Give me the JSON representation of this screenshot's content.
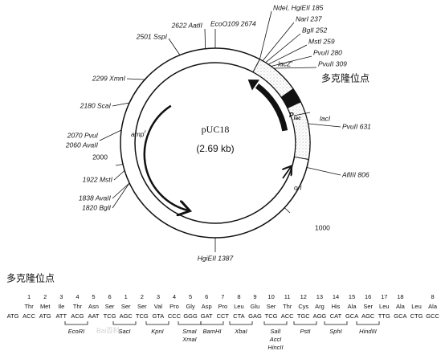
{
  "map": {
    "name": "pUC18",
    "size": "(2.69 kb)",
    "sites": [
      "NdeI, HgiEII 185",
      "NarI 237",
      "BglI 252",
      "MstI 259",
      "PvuII 280",
      "PvuII 309",
      "PvuII 631",
      "AflIII 806",
      "1000",
      "HgiEII 1387",
      "1820 BglI",
      "1838 AvaII",
      "1922 MstI",
      "2000",
      "2060 AvaII",
      "2070 PvuI",
      "2180 ScaI",
      "2299 XmnI",
      "2501 SspI",
      "2622 AatII",
      "EcoO109 2674"
    ],
    "genes": {
      "lacZ": "lacZ'",
      "lacI": "lacI",
      "plac": "P",
      "plac_sub": "lac",
      "amp": "amp",
      "amp_sup": "r",
      "ori": "ori"
    },
    "mcs_label": "多克隆位点"
  },
  "mcs": {
    "title": "多克隆位点",
    "columns": [
      {
        "number": null,
        "aa": null,
        "codon": "ATG"
      },
      {
        "number": 1,
        "aa": "Thr",
        "codon": "ACC"
      },
      {
        "number": 2,
        "aa": "Met",
        "codon": "ATG"
      },
      {
        "number": 3,
        "aa": "Ile",
        "codon": "ATT"
      },
      {
        "number": 4,
        "aa": "Thr",
        "codon": "ACG"
      },
      {
        "number": 5,
        "aa": "Asn",
        "codon": "AAT"
      },
      {
        "number": 6,
        "aa": "Ser",
        "codon": "TCG"
      },
      {
        "number": 1,
        "aa": "Ser",
        "codon": "AGC"
      },
      {
        "number": 2,
        "aa": "Ser",
        "codon": "TCG"
      },
      {
        "number": 3,
        "aa": "Val",
        "codon": "GTA"
      },
      {
        "number": 4,
        "aa": "Pro",
        "codon": "CCC"
      },
      {
        "number": 5,
        "aa": "Gly",
        "codon": "GGG"
      },
      {
        "number": 6,
        "aa": "Asp",
        "codon": "GAT"
      },
      {
        "number": 7,
        "aa": "Pro",
        "codon": "CCT"
      },
      {
        "number": 8,
        "aa": "Leu",
        "codon": "CTA"
      },
      {
        "number": 9,
        "aa": "Glu",
        "codon": "GAG"
      },
      {
        "number": 10,
        "aa": "Ser",
        "codon": "TCG"
      },
      {
        "number": 11,
        "aa": "Thr",
        "codon": "ACC"
      },
      {
        "number": 12,
        "aa": "Cys",
        "codon": "TGC"
      },
      {
        "number": 13,
        "aa": "Arg",
        "codon": "AGG"
      },
      {
        "number": 14,
        "aa": "His",
        "codon": "CAT"
      },
      {
        "number": 15,
        "aa": "Ala",
        "codon": "GCA"
      },
      {
        "number": 16,
        "aa": "Ser",
        "codon": "AGC"
      },
      {
        "number": 17,
        "aa": "Leu",
        "codon": "TTG"
      },
      {
        "number": 18,
        "aa": "Ala",
        "codon": "GCA"
      },
      {
        "number": null,
        "aa": "Leu",
        "codon": "CTG"
      },
      {
        "number": 8,
        "aa": "Ala",
        "codon": "GCC"
      }
    ],
    "enzymes": [
      [
        "EcoRI"
      ],
      [
        "SacI"
      ],
      [
        "KpnI"
      ],
      [
        "SmaI",
        "XmaI"
      ],
      [
        "BamHI"
      ],
      [
        "XbaI"
      ],
      [
        "SalI",
        "AccI",
        "HincII"
      ],
      [
        "PstI"
      ],
      [
        "SphI"
      ],
      [
        "HindIII"
      ]
    ],
    "watermark": "Bai百科"
  }
}
